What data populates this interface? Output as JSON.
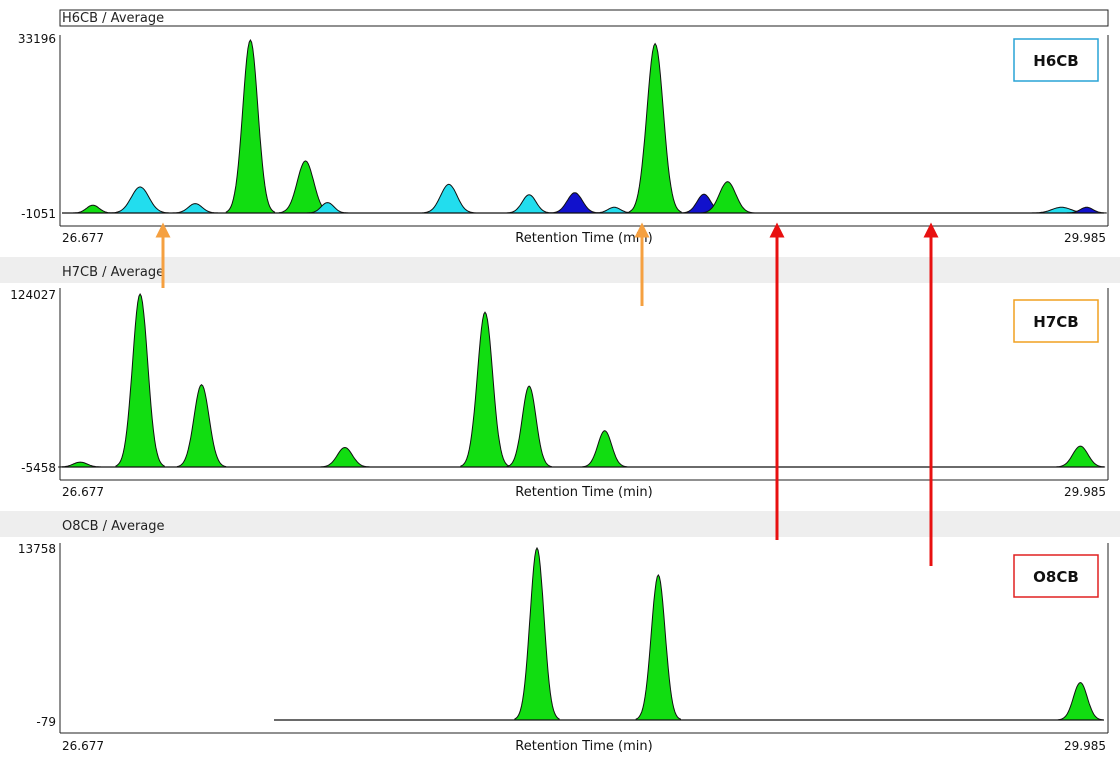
{
  "chart_data": {
    "type": "area",
    "x_range": [
      26.677,
      29.985
    ],
    "xlabel": "Retention Time (min)",
    "panels": [
      {
        "title": "H6CB / Average",
        "label": "H6CB",
        "label_color": "#29a3d6",
        "ymax": 33196,
        "ymin": -1051,
        "peaks": [
          {
            "rt": 26.775,
            "height": 1500,
            "width": 0.02,
            "color": "#11dd11"
          },
          {
            "rt": 26.925,
            "height": 5000,
            "width": 0.028,
            "color": "#22ddee"
          },
          {
            "rt": 27.1,
            "height": 1800,
            "width": 0.022,
            "color": "#22ddee"
          },
          {
            "rt": 27.275,
            "height": 33196,
            "width": 0.024,
            "color": "#11dd11"
          },
          {
            "rt": 27.45,
            "height": 10000,
            "width": 0.026,
            "color": "#11dd11"
          },
          {
            "rt": 27.52,
            "height": 2000,
            "width": 0.02,
            "color": "#22ddee"
          },
          {
            "rt": 27.905,
            "height": 5500,
            "width": 0.026,
            "color": "#22ddee"
          },
          {
            "rt": 28.16,
            "height": 3500,
            "width": 0.022,
            "color": "#22ddee"
          },
          {
            "rt": 28.305,
            "height": 3900,
            "width": 0.024,
            "color": "#1111cc"
          },
          {
            "rt": 28.43,
            "height": 1100,
            "width": 0.02,
            "color": "#22ddee"
          },
          {
            "rt": 28.56,
            "height": 32500,
            "width": 0.026,
            "color": "#11dd11"
          },
          {
            "rt": 28.715,
            "height": 3600,
            "width": 0.022,
            "color": "#1111cc"
          },
          {
            "rt": 28.79,
            "height": 6000,
            "width": 0.026,
            "color": "#11dd11"
          },
          {
            "rt": 29.85,
            "height": 1100,
            "width": 0.03,
            "color": "#22ddee"
          },
          {
            "rt": 29.93,
            "height": 1100,
            "width": 0.02,
            "color": "#1111cc"
          }
        ]
      },
      {
        "title": "H7CB / Average",
        "label": "H7CB",
        "label_color": "#f0a020",
        "ymax": 124027,
        "ymin": -5458,
        "peaks": [
          {
            "rt": 26.735,
            "height": 3500,
            "width": 0.022,
            "color": "#11dd11"
          },
          {
            "rt": 26.925,
            "height": 124027,
            "width": 0.024,
            "color": "#11dd11"
          },
          {
            "rt": 27.12,
            "height": 59000,
            "width": 0.024,
            "color": "#11dd11"
          },
          {
            "rt": 27.575,
            "height": 14000,
            "width": 0.024,
            "color": "#11dd11"
          },
          {
            "rt": 28.02,
            "height": 111000,
            "width": 0.024,
            "color": "#11dd11"
          },
          {
            "rt": 28.16,
            "height": 58000,
            "width": 0.022,
            "color": "#11dd11"
          },
          {
            "rt": 28.4,
            "height": 26000,
            "width": 0.022,
            "color": "#11dd11"
          },
          {
            "rt": 29.91,
            "height": 15000,
            "width": 0.024,
            "color": "#11dd11"
          }
        ]
      },
      {
        "title": "O8CB / Average",
        "label": "O8CB",
        "label_color": "#e02020",
        "ymax": 13758,
        "ymin": -79,
        "trace_start": 27.35,
        "peaks": [
          {
            "rt": 28.185,
            "height": 13758,
            "width": 0.022,
            "color": "#11dd11"
          },
          {
            "rt": 28.57,
            "height": 11600,
            "width": 0.022,
            "color": "#11dd11"
          },
          {
            "rt": 29.91,
            "height": 3000,
            "width": 0.022,
            "color": "#11dd11"
          }
        ]
      }
    ]
  }
}
